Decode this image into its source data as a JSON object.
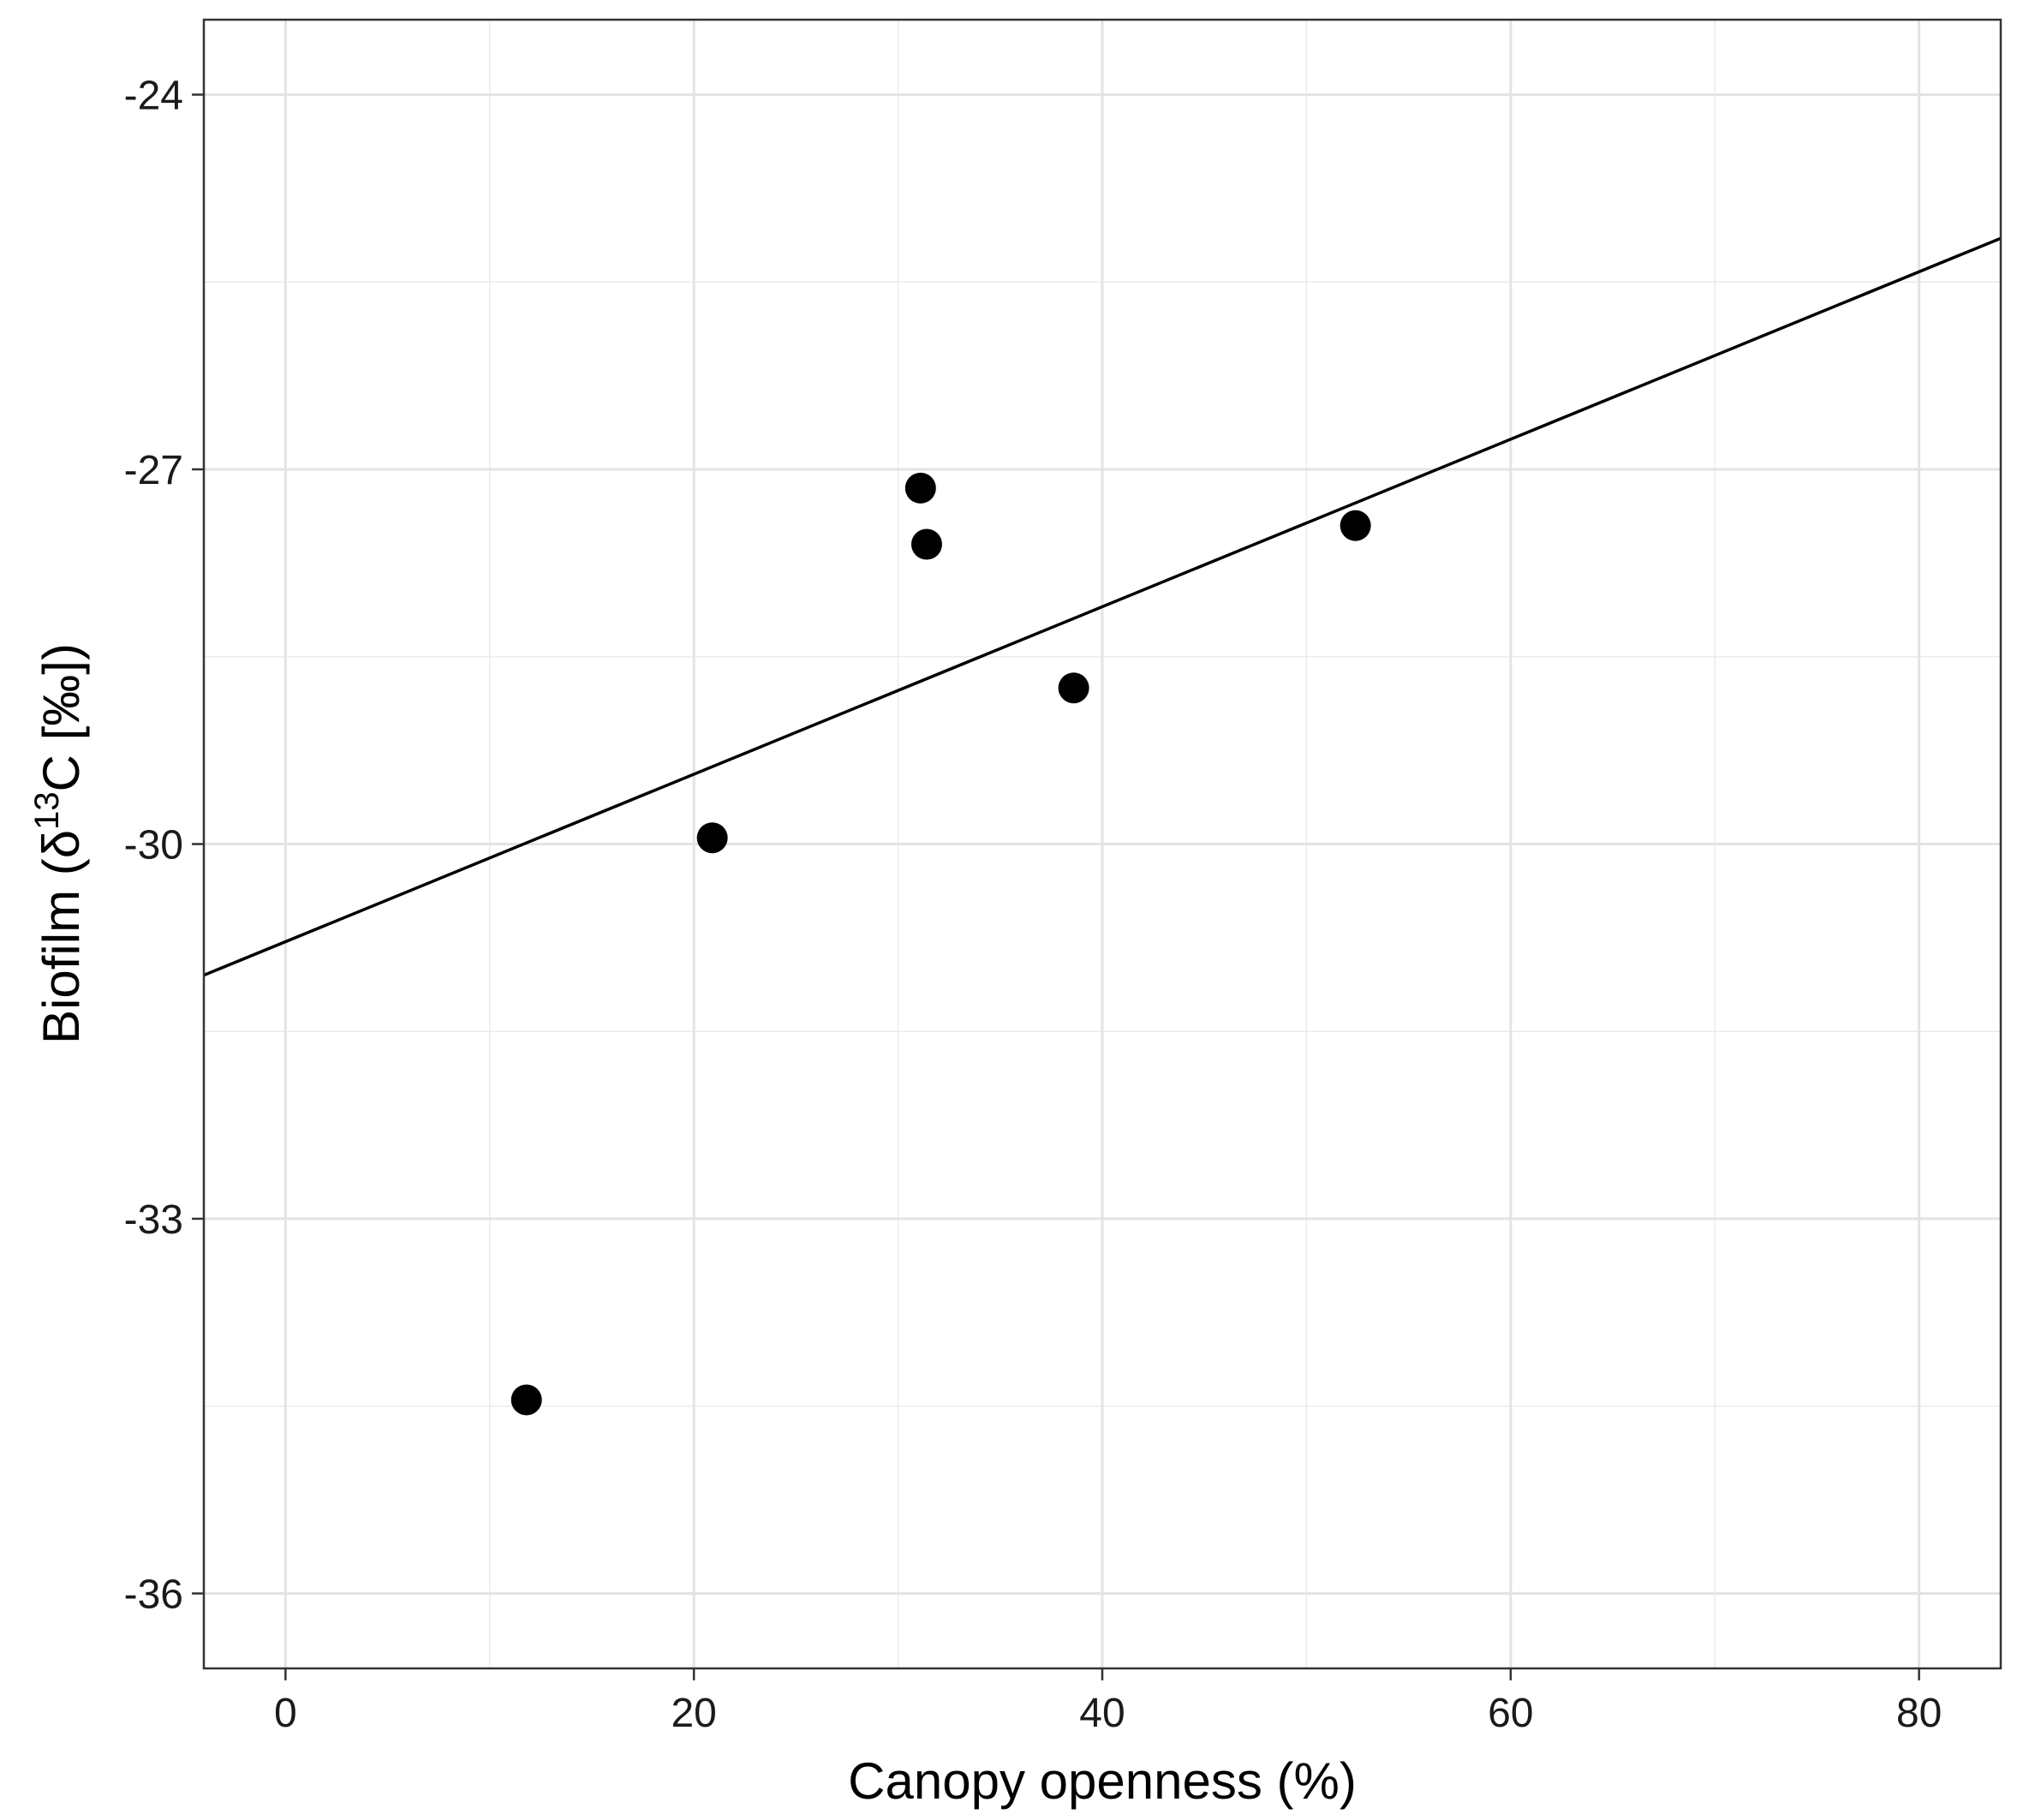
{
  "chart_data": {
    "type": "scatter",
    "title": "",
    "xlabel": "Canopy openness (%)",
    "ylabel": {
      "prefix": "Biofilm (",
      "delta": "δ",
      "superscript": "13",
      "suffix": "C [‰])"
    },
    "xlim": [
      -4,
      84
    ],
    "ylim": [
      -36.6,
      -23.4
    ],
    "x_ticks": [
      0,
      20,
      40,
      60,
      80
    ],
    "x_minor": [
      10,
      30,
      50,
      70
    ],
    "y_ticks": [
      -24,
      -27,
      -30,
      -33,
      -36
    ],
    "y_minor": [
      -25.5,
      -28.5,
      -31.5,
      -34.5
    ],
    "grid": true,
    "legend": "none",
    "series": [
      {
        "points": [
          {
            "x": 11.8,
            "y": -34.45
          },
          {
            "x": 20.9,
            "y": -29.95
          },
          {
            "x": 31.1,
            "y": -27.15
          },
          {
            "x": 31.4,
            "y": -27.6
          },
          {
            "x": 38.6,
            "y": -28.75
          },
          {
            "x": 52.4,
            "y": -27.45
          }
        ],
        "color": "#000000"
      }
    ],
    "fit_line": {
      "type": "linear",
      "x_range": [
        -4,
        84
      ],
      "y_range": [
        -31.05,
        -25.15
      ],
      "color": "#000000"
    }
  }
}
